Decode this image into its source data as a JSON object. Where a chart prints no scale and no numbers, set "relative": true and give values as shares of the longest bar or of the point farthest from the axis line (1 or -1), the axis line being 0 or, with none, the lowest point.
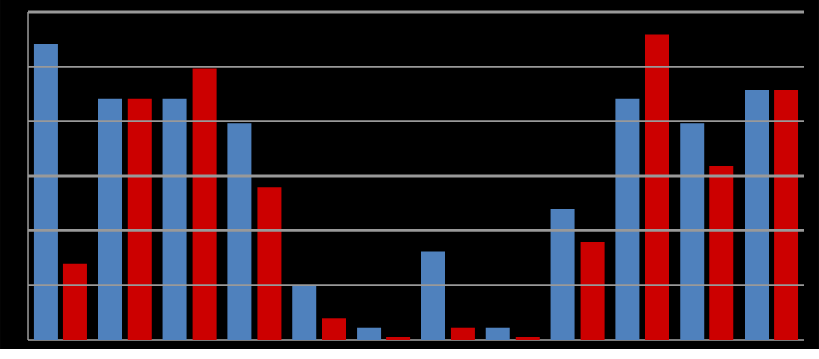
{
  "chart_data": {
    "type": "bar",
    "relative": true,
    "grid": "y",
    "categories": [
      null,
      null,
      null,
      null,
      null,
      null,
      null,
      null,
      null,
      null,
      null,
      null
    ],
    "series": [
      {
        "color": "#4f81bd",
        "values": [
          0.97,
          0.79,
          0.79,
          0.71,
          0.18,
          0.04,
          0.29,
          0.04,
          0.43,
          0.79,
          0.71,
          0.82
        ]
      },
      {
        "color": "#cc0000",
        "values": [
          0.25,
          0.79,
          0.89,
          0.5,
          0.07,
          0.01,
          0.04,
          0.01,
          0.32,
          1,
          0.57,
          0.82
        ]
      }
    ]
  }
}
